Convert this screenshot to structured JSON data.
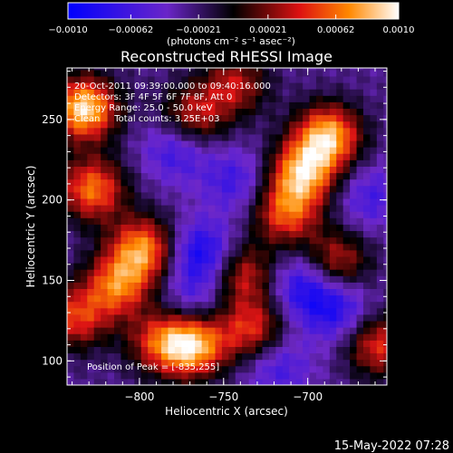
{
  "chart_data": {
    "type": "heatmap",
    "title": "Reconstructed RHESSI Image",
    "xlabel": "Heliocentric X (arcsec)",
    "ylabel": "Heliocentric Y (arcsec)",
    "xlim": [
      -843,
      -653
    ],
    "ylim": [
      85,
      282
    ],
    "x_ticks": [
      -800,
      -750,
      -700
    ],
    "x_tick_labels": [
      "−800",
      "−750",
      "−700"
    ],
    "y_ticks": [
      100,
      150,
      200,
      250
    ],
    "y_tick_labels": [
      "100",
      "150",
      "200",
      "250"
    ],
    "colorbar": {
      "range": [
        -0.001,
        0.001
      ],
      "ticks": [
        -0.001,
        -0.00062,
        -0.00021,
        0.00021,
        0.00062,
        0.001
      ],
      "tick_labels": [
        "−0.0010",
        "−0.00062",
        "−0.00021",
        "0.00021",
        "0.00062",
        "0.0010"
      ],
      "label": "(photons cm⁻² s⁻¹ asec⁻²)"
    },
    "annotations": [
      "20-Oct-2011 09:39:00.000 to 09:40:16.000",
      "Detectors: 3F 4F 5F 6F 7F 8F, Att 0",
      "Energy Range: 25.0 - 50.0 keV",
      "Clean     Total counts: 3.25E+03"
    ],
    "peak_label": "Position of Peak = [-835,255]",
    "peak": [
      -835,
      255
    ],
    "hot_regions": [
      {
        "x": -835,
        "y": 255,
        "level": 1.0
      },
      {
        "x": -830,
        "y": 205,
        "level": 0.75
      },
      {
        "x": -800,
        "y": 168,
        "level": 0.8
      },
      {
        "x": -815,
        "y": 145,
        "level": 0.7
      },
      {
        "x": -770,
        "y": 108,
        "level": 0.9
      },
      {
        "x": -790,
        "y": 110,
        "level": 0.55
      },
      {
        "x": -740,
        "y": 152,
        "level": 0.55
      },
      {
        "x": -735,
        "y": 118,
        "level": 0.6
      },
      {
        "x": -705,
        "y": 215,
        "level": 0.85
      },
      {
        "x": -690,
        "y": 238,
        "level": 0.9
      },
      {
        "x": -715,
        "y": 190,
        "level": 0.65
      },
      {
        "x": -770,
        "y": 250,
        "level": 0.55
      },
      {
        "x": -745,
        "y": 270,
        "level": 0.5
      },
      {
        "x": -685,
        "y": 160,
        "level": 0.55
      },
      {
        "x": -660,
        "y": 108,
        "level": 0.6
      },
      {
        "x": -840,
        "y": 125,
        "level": 0.6
      }
    ],
    "cold_regions": [
      {
        "x": -765,
        "y": 165,
        "level": 1.0
      },
      {
        "x": -780,
        "y": 230,
        "level": 0.7
      },
      {
        "x": -705,
        "y": 145,
        "level": 0.85
      },
      {
        "x": -685,
        "y": 130,
        "level": 0.8
      },
      {
        "x": -745,
        "y": 210,
        "level": 0.6
      },
      {
        "x": -720,
        "y": 95,
        "level": 0.6
      },
      {
        "x": -665,
        "y": 200,
        "level": 0.55
      },
      {
        "x": -770,
        "y": 135,
        "level": 0.5
      }
    ]
  },
  "timestamp": "15-May-2022 07:28"
}
